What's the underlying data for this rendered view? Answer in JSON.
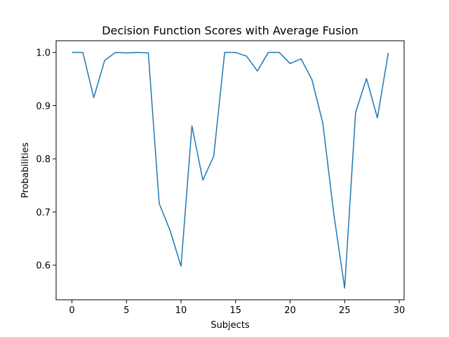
{
  "chart_data": {
    "type": "line",
    "title": "Decision Function Scores with Average Fusion",
    "xlabel": "Subjects",
    "ylabel": "Probabilities",
    "xlim": [
      -1.45,
      30.45
    ],
    "ylim": [
      0.535,
      1.022
    ],
    "grid": false,
    "x_ticks": [
      0,
      5,
      10,
      15,
      20,
      25,
      30
    ],
    "x_tick_labels": [
      "0",
      "5",
      "10",
      "15",
      "20",
      "25",
      "30"
    ],
    "y_ticks": [
      0.6,
      0.7,
      0.8,
      0.9,
      1.0
    ],
    "y_tick_labels": [
      "0.6",
      "0.7",
      "0.8",
      "0.9",
      "1.0"
    ],
    "line_color": "#1f77b4",
    "series": [
      {
        "x": [
          0,
          1,
          2,
          3,
          4,
          5,
          6,
          7,
          8,
          9,
          10,
          11,
          12,
          13,
          14,
          15,
          16,
          17,
          18,
          19,
          20,
          21,
          22,
          23,
          24,
          25,
          26,
          27,
          28,
          29
        ],
        "values": [
          1.0,
          1.0,
          0.915,
          0.985,
          1.0,
          0.999,
          1.0,
          0.999,
          0.716,
          0.665,
          0.598,
          0.862,
          0.76,
          0.805,
          1.0,
          1.0,
          0.993,
          0.965,
          1.0,
          1.0,
          0.979,
          0.988,
          0.949,
          0.867,
          0.697,
          0.557,
          0.887,
          0.951,
          0.877,
          0.999
        ]
      }
    ]
  }
}
